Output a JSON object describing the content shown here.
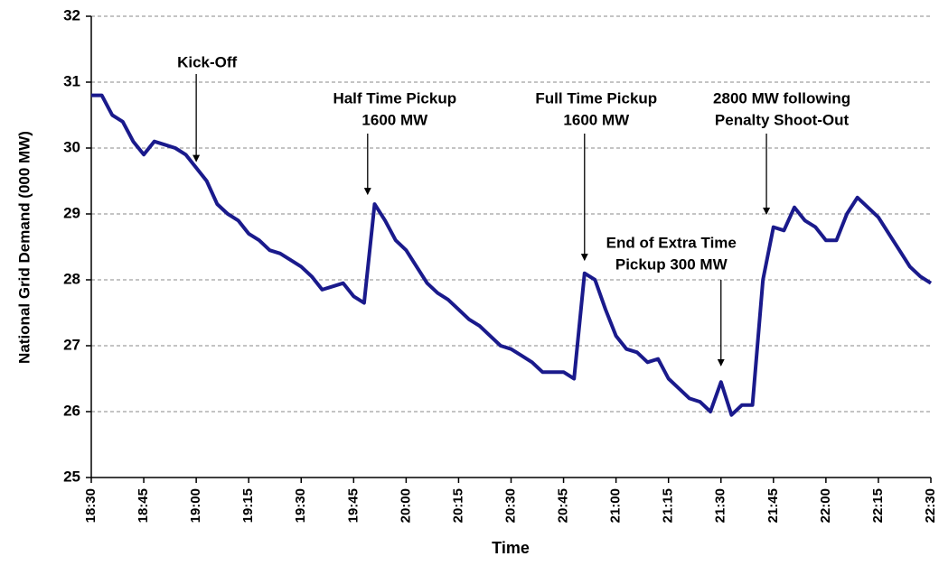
{
  "chart_data": {
    "type": "line",
    "x_label": "Time",
    "y_label": "National Grid Demand (000 MW)",
    "color": "#1a1a8c",
    "grid": true,
    "x": [
      "18:30",
      "18:33",
      "18:36",
      "18:39",
      "18:42",
      "18:45",
      "18:48",
      "18:51",
      "18:54",
      "18:57",
      "19:00",
      "19:03",
      "19:06",
      "19:09",
      "19:12",
      "19:15",
      "19:18",
      "19:21",
      "19:24",
      "19:27",
      "19:30",
      "19:33",
      "19:36",
      "19:39",
      "19:42",
      "19:45",
      "19:48",
      "19:51",
      "19:54",
      "19:57",
      "20:00",
      "20:03",
      "20:06",
      "20:09",
      "20:12",
      "20:15",
      "20:18",
      "20:21",
      "20:24",
      "20:27",
      "20:30",
      "20:33",
      "20:36",
      "20:39",
      "20:42",
      "20:45",
      "20:48",
      "20:51",
      "20:54",
      "20:57",
      "21:00",
      "21:03",
      "21:06",
      "21:09",
      "21:12",
      "21:15",
      "21:18",
      "21:21",
      "21:24",
      "21:27",
      "21:30",
      "21:33",
      "21:36",
      "21:39",
      "21:42",
      "21:45",
      "21:48",
      "21:51",
      "21:54",
      "21:57",
      "22:00",
      "22:03",
      "22:06",
      "22:09",
      "22:12",
      "22:15",
      "22:18",
      "22:21",
      "22:24",
      "22:27",
      "22:30"
    ],
    "values": [
      30.8,
      30.8,
      30.5,
      30.4,
      30.1,
      29.9,
      30.1,
      30.05,
      30.0,
      29.9,
      29.7,
      29.5,
      29.15,
      29.0,
      28.9,
      28.7,
      28.6,
      28.45,
      28.4,
      28.3,
      28.2,
      28.05,
      27.85,
      27.9,
      27.95,
      27.75,
      27.65,
      29.15,
      28.9,
      28.6,
      28.45,
      28.2,
      27.95,
      27.8,
      27.7,
      27.55,
      27.4,
      27.3,
      27.15,
      27.0,
      26.95,
      26.85,
      26.75,
      26.6,
      26.6,
      26.6,
      26.5,
      28.1,
      28.0,
      27.55,
      27.15,
      26.95,
      26.9,
      26.75,
      26.8,
      26.5,
      26.35,
      26.2,
      26.15,
      26.0,
      26.45,
      25.95,
      26.1,
      26.1,
      28.0,
      28.8,
      28.75,
      29.1,
      28.9,
      28.8,
      28.6,
      28.6,
      29.0,
      29.25,
      29.1,
      28.95,
      28.7,
      28.45,
      28.2,
      28.05,
      27.95
    ],
    "xlim": [
      "18:30",
      "22:30"
    ],
    "xticks": [
      "18:30",
      "18:45",
      "19:00",
      "19:15",
      "19:30",
      "19:45",
      "20:00",
      "20:15",
      "20:30",
      "20:45",
      "21:00",
      "21:15",
      "21:30",
      "21:45",
      "22:00",
      "22:15",
      "22:30"
    ],
    "ylim": [
      25,
      32
    ],
    "yticks": [
      25,
      26,
      27,
      28,
      29,
      30,
      31,
      32
    ],
    "annotations": [
      {
        "lines": [
          "Kick-Off"
        ],
        "x": "19:00",
        "y": 29.8
      },
      {
        "lines": [
          "Half Time Pickup",
          "1600 MW"
        ],
        "x": "19:49",
        "y": 29.3
      },
      {
        "lines": [
          "Full Time Pickup",
          "1600 MW"
        ],
        "x": "20:51",
        "y": 28.3
      },
      {
        "lines": [
          "End of Extra Time",
          "Pickup 300 MW"
        ],
        "x": "21:30",
        "y": 26.7
      },
      {
        "lines": [
          "2800 MW following",
          "Penalty Shoot-Out"
        ],
        "x": "21:43",
        "y": 29.0
      }
    ]
  }
}
